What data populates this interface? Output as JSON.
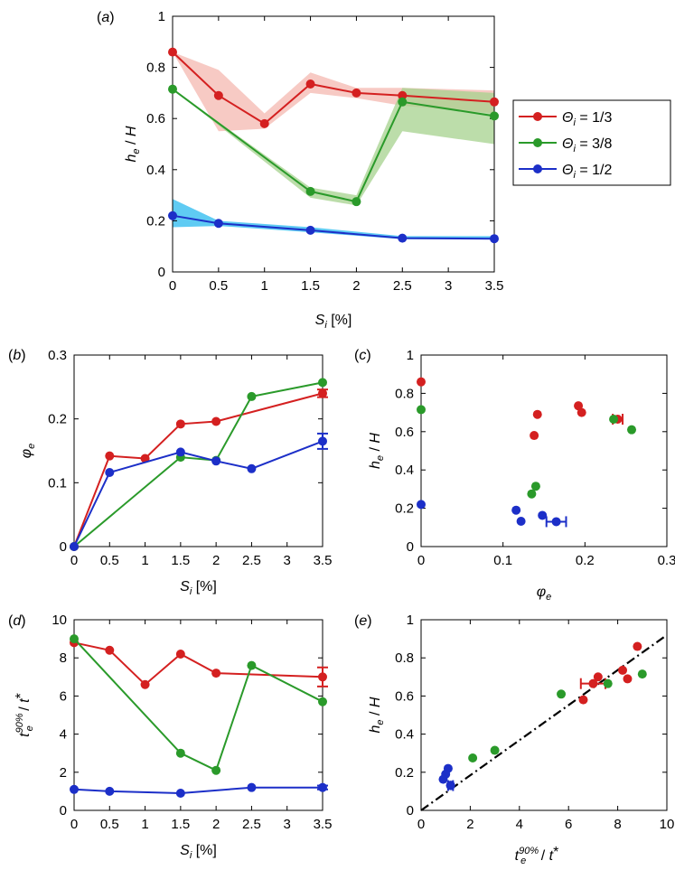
{
  "colors": {
    "red": "#d42020",
    "green": "#2a9a2a",
    "blue": "#1c2fc8",
    "red_band": "#f4b8b0",
    "green_band": "#a6d28e",
    "blue_band": "#56c8f2"
  },
  "legend": {
    "items": [
      {
        "series": "red",
        "label": "Θi = 1/3",
        "sym": "Θ",
        "sub": "i",
        "rest": " = 1/3"
      },
      {
        "series": "green",
        "label": "Θi = 3/8",
        "sym": "Θ",
        "sub": "i",
        "rest": " = 3/8"
      },
      {
        "series": "blue",
        "label": "Θi = 1/2",
        "sym": "Θ",
        "sub": "i",
        "rest": " = 1/2"
      }
    ]
  },
  "chart_data": [
    {
      "panel": "(a)",
      "type": "line",
      "xlabel": "Si [%]",
      "ylabel": "he / H",
      "xlim": [
        0,
        3.5
      ],
      "ylim": [
        0,
        1
      ],
      "xticks": [
        "0",
        "0.5",
        "1",
        "1.5",
        "2",
        "2.5",
        "3",
        "3.5"
      ],
      "yticks": [
        "0",
        "0.2",
        "0.4",
        "0.6",
        "0.8",
        "1"
      ],
      "x": [
        0,
        0.5,
        1,
        1.5,
        2,
        2.5,
        3.5
      ],
      "series": [
        {
          "name": "Θi = 1/3",
          "color": "red",
          "values": [
            0.86,
            0.69,
            0.58,
            0.735,
            0.7,
            0.69,
            0.665
          ],
          "band_lo": [
            0.86,
            0.55,
            0.56,
            0.7,
            0.68,
            0.65,
            0.62
          ],
          "band_hi": [
            0.86,
            0.79,
            0.62,
            0.78,
            0.72,
            0.72,
            0.71
          ]
        },
        {
          "name": "Θi = 3/8",
          "color": "green",
          "values": [
            0.715,
            null,
            null,
            0.315,
            0.275,
            0.665,
            0.61
          ],
          "band_lo": [
            0.715,
            null,
            null,
            0.29,
            0.26,
            0.55,
            0.5
          ],
          "band_hi": [
            0.715,
            null,
            null,
            0.33,
            0.3,
            0.72,
            0.7
          ]
        },
        {
          "name": "Θi = 1/2",
          "color": "blue",
          "values": [
            0.22,
            0.19,
            null,
            0.163,
            null,
            0.132,
            0.13
          ],
          "band_lo": [
            0.175,
            0.18,
            null,
            0.155,
            null,
            0.128,
            0.128
          ],
          "band_hi": [
            0.285,
            0.2,
            null,
            0.175,
            null,
            0.14,
            0.14
          ]
        }
      ]
    },
    {
      "panel": "(b)",
      "type": "line",
      "xlabel": "Si [%]",
      "ylabel": "φe",
      "xlim": [
        0,
        3.5
      ],
      "ylim": [
        0,
        0.3
      ],
      "xticks": [
        "0",
        "0.5",
        "1",
        "1.5",
        "2",
        "2.5",
        "3",
        "3.5"
      ],
      "yticks": [
        "0",
        "0.1",
        "0.2",
        "0.3"
      ],
      "series": [
        {
          "name": "Θi = 1/3",
          "color": "red",
          "x": [
            0,
            0.5,
            1,
            1.5,
            2,
            3.5
          ],
          "values": [
            0,
            0.142,
            0.138,
            0.192,
            0.196,
            0.24
          ],
          "err": [
            null,
            null,
            null,
            null,
            null,
            0.006
          ]
        },
        {
          "name": "Θi = 3/8",
          "color": "green",
          "x": [
            0,
            1.5,
            2,
            2.5,
            3.5
          ],
          "values": [
            0,
            0.14,
            0.135,
            0.235,
            0.257
          ],
          "err": [
            null,
            null,
            null,
            null,
            null
          ]
        },
        {
          "name": "Θi = 1/2",
          "color": "blue",
          "x": [
            0,
            0.5,
            1.5,
            2,
            2.5,
            3.5
          ],
          "values": [
            0,
            0.116,
            0.148,
            0.134,
            0.122,
            0.165
          ],
          "err": [
            null,
            null,
            null,
            null,
            null,
            0.012
          ]
        }
      ]
    },
    {
      "panel": "(c)",
      "type": "scatter",
      "xlabel": "φe",
      "ylabel": "he / H",
      "xlim": [
        0,
        0.3
      ],
      "ylim": [
        0,
        1
      ],
      "xticks": [
        "0",
        "0.1",
        "0.2",
        "0.3"
      ],
      "yticks": [
        "0",
        "0.2",
        "0.4",
        "0.6",
        "0.8",
        "1"
      ],
      "series": [
        {
          "name": "Θi = 1/3",
          "color": "red",
          "x": [
            0,
            0.142,
            0.138,
            0.192,
            0.196,
            0.24
          ],
          "y": [
            0.86,
            0.69,
            0.58,
            0.735,
            0.7,
            0.665
          ],
          "xerr": [
            null,
            null,
            null,
            null,
            null,
            0.006
          ]
        },
        {
          "name": "Θi = 3/8",
          "color": "green",
          "x": [
            0,
            0.14,
            0.135,
            0.235,
            0.257
          ],
          "y": [
            0.715,
            0.315,
            0.275,
            0.665,
            0.61
          ],
          "xerr": [
            null,
            null,
            null,
            null,
            null
          ]
        },
        {
          "name": "Θi = 1/2",
          "color": "blue",
          "x": [
            0,
            0.116,
            0.148,
            0.122,
            0.165
          ],
          "y": [
            0.22,
            0.19,
            0.163,
            0.132,
            0.13
          ],
          "xerr": [
            null,
            null,
            null,
            null,
            0.012
          ]
        }
      ]
    },
    {
      "panel": "(d)",
      "type": "line",
      "xlabel": "Si [%]",
      "ylabel": "te90% / t*",
      "xlim": [
        0,
        3.5
      ],
      "ylim": [
        0,
        10
      ],
      "xticks": [
        "0",
        "0.5",
        "1",
        "1.5",
        "2",
        "2.5",
        "3",
        "3.5"
      ],
      "yticks": [
        "0",
        "2",
        "4",
        "6",
        "8",
        "10"
      ],
      "series": [
        {
          "name": "Θi = 1/3",
          "color": "red",
          "x": [
            0,
            0.5,
            1,
            1.5,
            2,
            3.5
          ],
          "values": [
            8.8,
            8.4,
            6.6,
            8.2,
            7.2,
            7.0
          ],
          "err": [
            null,
            null,
            null,
            null,
            null,
            0.5
          ]
        },
        {
          "name": "Θi = 3/8",
          "color": "green",
          "x": [
            0,
            1.5,
            2,
            2.5,
            3.5
          ],
          "values": [
            9.0,
            3.0,
            2.1,
            7.6,
            5.7
          ],
          "err": [
            null,
            null,
            null,
            null,
            null
          ]
        },
        {
          "name": "Θi = 1/2",
          "color": "blue",
          "x": [
            0,
            0.5,
            1.5,
            2.5,
            3.5
          ],
          "values": [
            1.1,
            1.0,
            0.9,
            1.2,
            1.2
          ],
          "err": [
            null,
            null,
            null,
            null,
            0.1
          ]
        }
      ]
    },
    {
      "panel": "(e)",
      "type": "scatter",
      "xlabel": "te90% / t*",
      "ylabel": "he / H",
      "xlim": [
        0,
        10
      ],
      "ylim": [
        0,
        1
      ],
      "xticks": [
        "0",
        "2",
        "4",
        "6",
        "8",
        "10"
      ],
      "yticks": [
        "0",
        "0.2",
        "0.4",
        "0.6",
        "0.8",
        "1"
      ],
      "reference_line": {
        "style": "dash-dot",
        "slope": 0.092,
        "intercept": 0
      },
      "series": [
        {
          "name": "Θi = 1/3",
          "color": "red",
          "x": [
            8.8,
            8.4,
            6.6,
            8.2,
            7.2,
            7.0
          ],
          "y": [
            0.86,
            0.69,
            0.58,
            0.735,
            0.7,
            0.665
          ],
          "xerr": [
            null,
            null,
            null,
            null,
            null,
            0.5
          ]
        },
        {
          "name": "Θi = 3/8",
          "color": "green",
          "x": [
            9.0,
            3.0,
            2.1,
            7.6,
            5.7
          ],
          "y": [
            0.715,
            0.315,
            0.275,
            0.665,
            0.61
          ],
          "xerr": [
            null,
            null,
            null,
            null,
            null
          ]
        },
        {
          "name": "Θi = 1/2",
          "color": "blue",
          "x": [
            1.1,
            1.0,
            0.9,
            1.2,
            1.2
          ],
          "y": [
            0.22,
            0.19,
            0.163,
            0.132,
            0.13
          ],
          "xerr": [
            null,
            null,
            null,
            null,
            0.1
          ]
        }
      ]
    }
  ]
}
